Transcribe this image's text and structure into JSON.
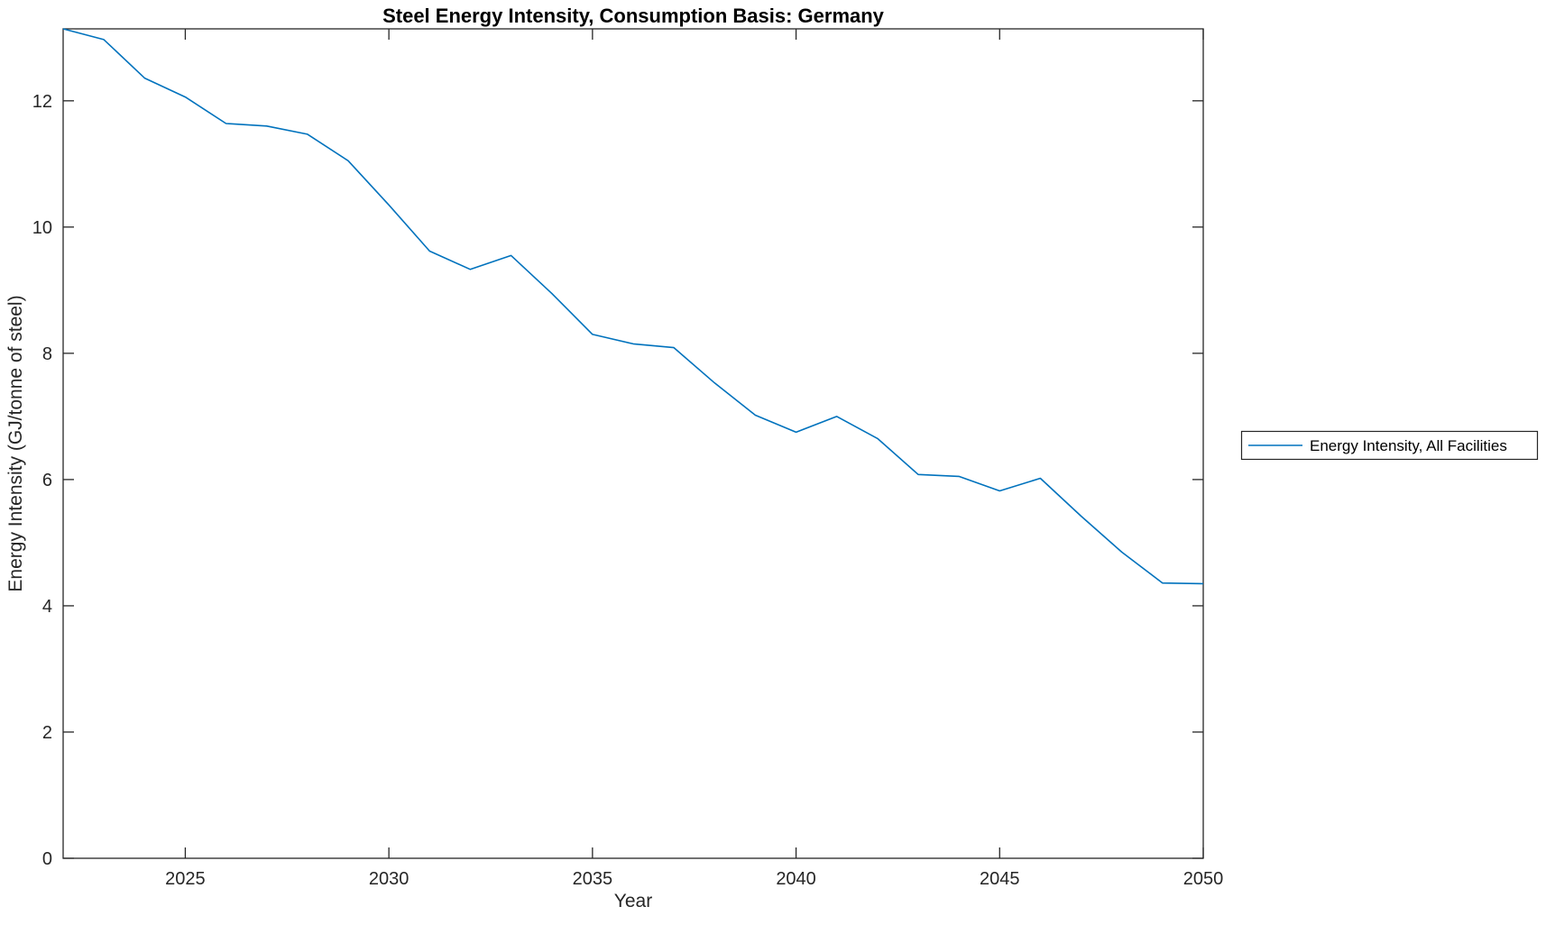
{
  "chart_data": {
    "type": "line",
    "title": "Steel Energy Intensity, Consumption Basis: Germany",
    "xlabel": "Year",
    "ylabel": "Energy Intensity (GJ/tonne of steel)",
    "xlim": [
      2022,
      2050
    ],
    "ylim": [
      0,
      13.14
    ],
    "x_ticks": [
      2025,
      2030,
      2035,
      2040,
      2045,
      2050
    ],
    "y_ticks": [
      0,
      2,
      4,
      6,
      8,
      10,
      12
    ],
    "grid": false,
    "legend": {
      "position": "outside-right",
      "entries": [
        "Energy Intensity, All Facilities"
      ]
    },
    "series": [
      {
        "name": "Energy Intensity, All Facilities",
        "color": "#0072BD",
        "x": [
          2022,
          2023,
          2024,
          2025,
          2026,
          2027,
          2028,
          2029,
          2030,
          2031,
          2032,
          2033,
          2034,
          2035,
          2036,
          2037,
          2038,
          2039,
          2040,
          2041,
          2042,
          2043,
          2044,
          2045,
          2046,
          2047,
          2048,
          2049,
          2050
        ],
        "values": [
          13.14,
          12.97,
          12.36,
          12.06,
          11.64,
          11.6,
          11.47,
          11.05,
          10.35,
          9.62,
          9.33,
          9.55,
          8.95,
          8.3,
          8.15,
          8.09,
          7.53,
          7.02,
          6.75,
          7.0,
          6.65,
          6.08,
          6.05,
          5.82,
          6.02,
          5.42,
          4.85,
          4.36,
          4.35
        ]
      }
    ]
  },
  "colors": {
    "background": "#ffffff",
    "axis": "#262626",
    "tick_text": "#262626",
    "title_text": "#000000",
    "series_blue": "#0072BD"
  }
}
